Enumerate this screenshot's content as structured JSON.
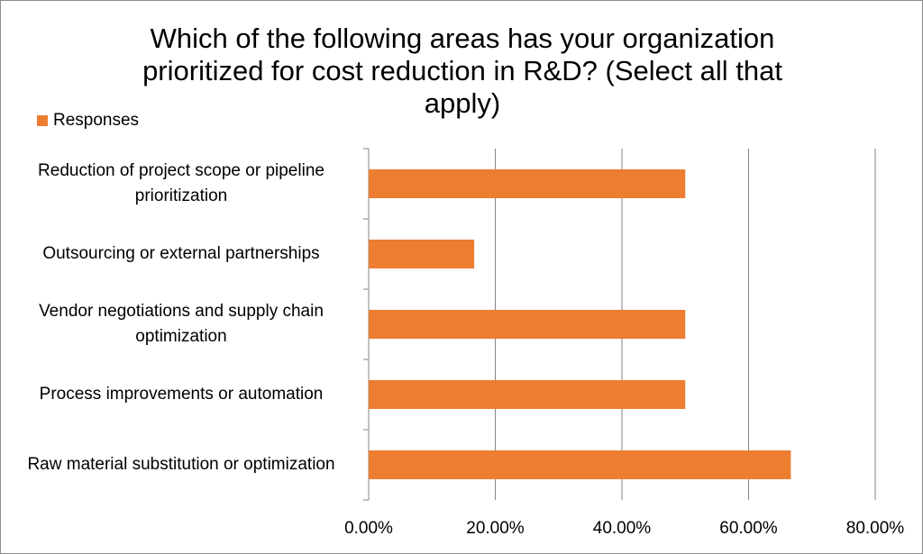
{
  "chart_data": {
    "type": "bar",
    "orientation": "horizontal",
    "title": "Which of the following areas has your organization prioritized for cost reduction in R&D? (Select all that apply)",
    "categories": [
      "Reduction of project scope or pipeline prioritization",
      "Outsourcing or external partnerships",
      "Vendor negotiations and supply chain optimization",
      "Process improvements or automation",
      "Raw material substitution or optimization"
    ],
    "series": [
      {
        "name": "Responses",
        "color": "#ed7d31",
        "values": [
          50,
          16.67,
          50,
          50,
          66.67
        ]
      }
    ],
    "xlim": [
      0,
      80
    ],
    "xticks": [
      {
        "value": 0,
        "label": "0.00%"
      },
      {
        "value": 20,
        "label": "20.00%"
      },
      {
        "value": 40,
        "label": "40.00%"
      },
      {
        "value": 60,
        "label": "60.00%"
      },
      {
        "value": 80,
        "label": "80.00%"
      }
    ],
    "grid": true,
    "legend": "top-left"
  }
}
